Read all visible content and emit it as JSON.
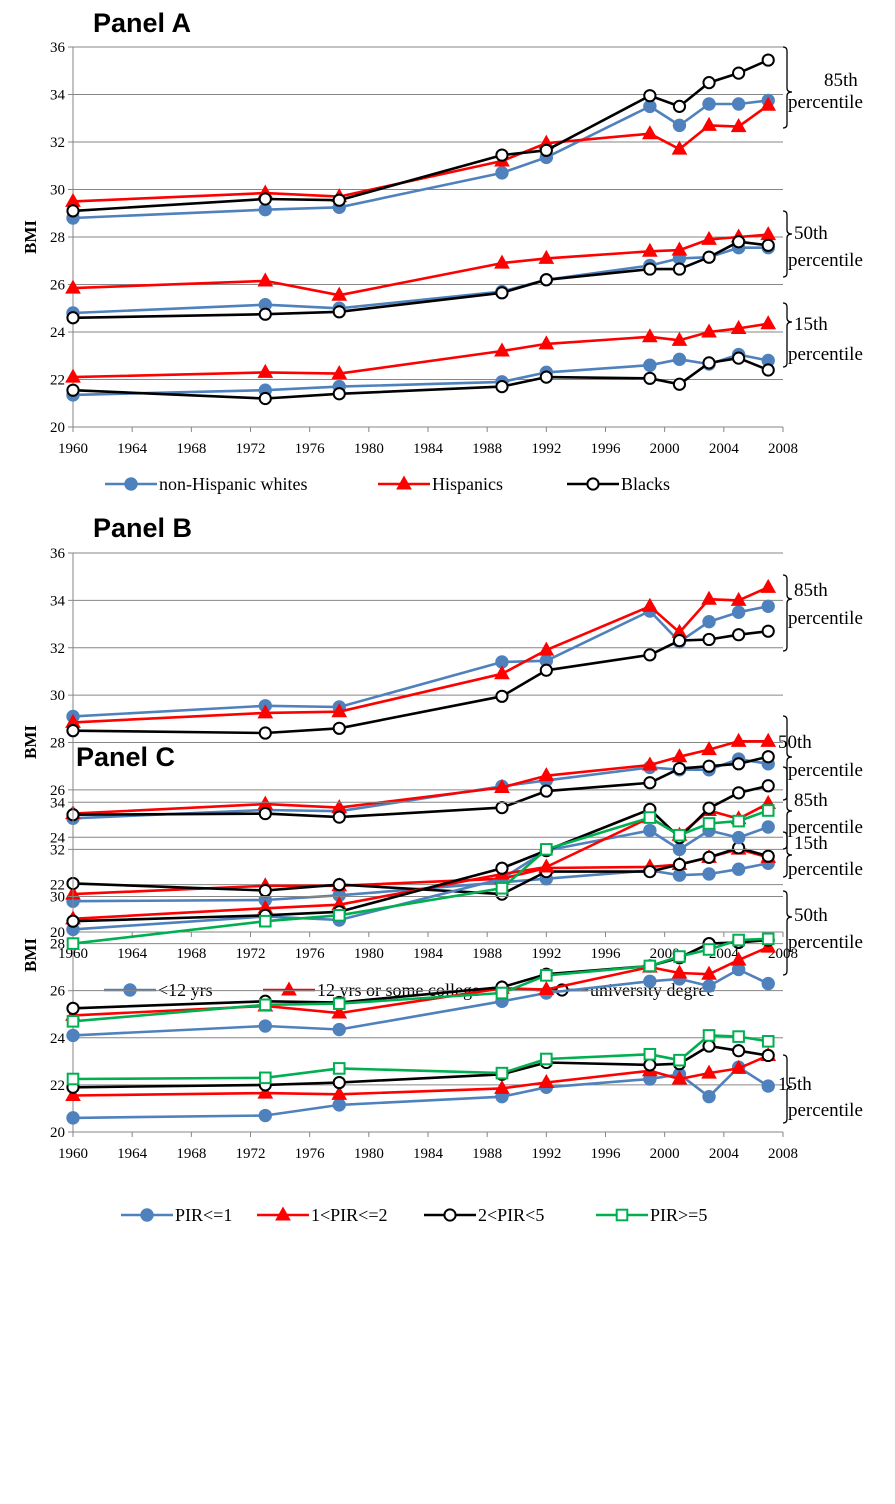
{
  "chart_data": [
    {
      "type": "line",
      "title": "Panel A",
      "ylabel": "BMI",
      "xlim": [
        1960,
        2008
      ],
      "ylim": [
        20,
        36
      ],
      "x_ticks": [
        "1960",
        "1964",
        "1968",
        "1972",
        "1976",
        "1980",
        "1984",
        "1988",
        "1992",
        "1996",
        "2000",
        "2004",
        "2008"
      ],
      "y_ticks": [
        "20",
        "22",
        "24",
        "26",
        "28",
        "30",
        "32",
        "34",
        "36"
      ],
      "grid": "horizontal",
      "legend": [
        {
          "label": "non-Hispanic whites",
          "color": "#4F81BD",
          "marker": "circle"
        },
        {
          "label": "Hispanics",
          "color": "#FF0000",
          "marker": "triangle"
        },
        {
          "label": "Blacks",
          "color": "#000000",
          "marker": "open-circle"
        }
      ],
      "percentile_labels": [
        {
          "line1": "85th",
          "line2": "percentile"
        },
        {
          "line1": "50th",
          "line2": "percentile"
        },
        {
          "line1": "15th",
          "line2": "percentile"
        }
      ],
      "x": [
        1960,
        1973,
        1978,
        1989,
        1992,
        1999,
        2001,
        2003,
        2005,
        2007
      ],
      "series": [
        {
          "legend": 0,
          "percentile": "85th",
          "values": [
            28.8,
            29.15,
            29.25,
            30.7,
            31.35,
            33.5,
            32.7,
            33.6,
            33.6,
            33.75
          ]
        },
        {
          "legend": 1,
          "percentile": "85th",
          "values": [
            29.5,
            29.85,
            29.7,
            31.2,
            31.95,
            32.35,
            31.7,
            32.7,
            32.65,
            33.55
          ]
        },
        {
          "legend": 2,
          "percentile": "85th",
          "values": [
            29.1,
            29.6,
            29.55,
            31.45,
            31.65,
            33.95,
            33.5,
            34.5,
            34.9,
            35.45
          ]
        },
        {
          "legend": 0,
          "percentile": "50th",
          "values": [
            24.8,
            25.15,
            25.0,
            25.7,
            26.2,
            26.8,
            27.1,
            27.15,
            27.55,
            27.55
          ]
        },
        {
          "legend": 1,
          "percentile": "50th",
          "values": [
            25.85,
            26.15,
            25.55,
            26.9,
            27.1,
            27.4,
            27.45,
            27.9,
            28.0,
            28.1
          ]
        },
        {
          "legend": 2,
          "percentile": "50th",
          "values": [
            24.6,
            24.75,
            24.85,
            25.65,
            26.2,
            26.65,
            26.65,
            27.15,
            27.8,
            27.65
          ]
        },
        {
          "legend": 0,
          "percentile": "15th",
          "values": [
            21.35,
            21.55,
            21.7,
            21.9,
            22.3,
            22.6,
            22.85,
            22.65,
            23.05,
            22.8
          ]
        },
        {
          "legend": 1,
          "percentile": "15th",
          "values": [
            22.1,
            22.3,
            22.25,
            23.2,
            23.5,
            23.8,
            23.65,
            24.0,
            24.15,
            24.35
          ]
        },
        {
          "legend": 2,
          "percentile": "15th",
          "values": [
            21.55,
            21.2,
            21.4,
            21.7,
            22.1,
            22.05,
            21.8,
            22.7,
            22.9,
            22.4
          ]
        }
      ]
    },
    {
      "type": "line",
      "title": "Panel B",
      "ylabel": "BMI",
      "xlim": [
        1960,
        2008
      ],
      "ylim": [
        20,
        36
      ],
      "x_ticks": [
        "1960",
        "1964",
        "1968",
        "1972",
        "1976",
        "1980",
        "1984",
        "1988",
        "1992",
        "1996",
        "2000",
        "2004",
        "2008"
      ],
      "y_ticks": [
        "20",
        "22",
        "24",
        "26",
        "28",
        "30",
        "32",
        "34",
        "36"
      ],
      "grid": "horizontal",
      "legend": [
        {
          "label": "<12 yrs",
          "color": "#4F81BD",
          "marker": "circle"
        },
        {
          "label": "12 yrs or some college",
          "color": "#FF0000",
          "marker": "triangle"
        },
        {
          "label": "university degree",
          "color": "#000000",
          "marker": "open-circle"
        }
      ],
      "percentile_labels": [
        {
          "line1": "85th",
          "line2": "percentile"
        },
        {
          "line1": "50th",
          "line2": "percentile"
        },
        {
          "line1": "15th",
          "line2": "percentile"
        }
      ],
      "x": [
        1960,
        1973,
        1978,
        1989,
        1992,
        1999,
        2001,
        2003,
        2005,
        2007
      ],
      "series": [
        {
          "legend": 0,
          "percentile": "85th",
          "values": [
            29.1,
            29.55,
            29.5,
            31.4,
            31.45,
            33.55,
            32.25,
            33.1,
            33.5,
            33.75
          ]
        },
        {
          "legend": 1,
          "percentile": "85th",
          "values": [
            28.85,
            29.25,
            29.3,
            30.9,
            31.9,
            33.75,
            32.65,
            34.05,
            34.0,
            34.55
          ]
        },
        {
          "legend": 2,
          "percentile": "85th",
          "values": [
            28.5,
            28.4,
            28.6,
            29.95,
            31.05,
            31.7,
            32.3,
            32.35,
            32.55,
            32.7
          ]
        },
        {
          "legend": 0,
          "percentile": "50th",
          "values": [
            24.8,
            25.15,
            25.1,
            26.15,
            26.4,
            26.95,
            26.85,
            26.85,
            27.3,
            27.1
          ]
        },
        {
          "legend": 1,
          "percentile": "50th",
          "values": [
            25.0,
            25.4,
            25.25,
            26.1,
            26.6,
            27.05,
            27.4,
            27.7,
            28.05,
            28.05
          ]
        },
        {
          "legend": 2,
          "percentile": "50th",
          "values": [
            24.95,
            25.0,
            24.85,
            25.25,
            25.95,
            26.3,
            26.9,
            27.0,
            27.1,
            27.4
          ]
        },
        {
          "legend": 0,
          "percentile": "15th",
          "values": [
            21.3,
            21.35,
            21.55,
            22.1,
            22.25,
            22.6,
            22.4,
            22.45,
            22.65,
            22.9
          ]
        },
        {
          "legend": 1,
          "percentile": "15th",
          "values": [
            21.6,
            21.95,
            21.95,
            22.25,
            22.7,
            22.75,
            22.85,
            23.15,
            23.5,
            23.15
          ]
        },
        {
          "legend": 2,
          "percentile": "15th",
          "values": [
            22.05,
            21.75,
            22.0,
            21.6,
            22.55,
            22.55,
            22.85,
            23.15,
            23.55,
            23.2
          ]
        }
      ]
    },
    {
      "type": "line",
      "title": "Panel C",
      "ylabel": "BMI",
      "xlim": [
        1960,
        2008
      ],
      "ylim": [
        20,
        35.2
      ],
      "x_ticks": [
        "1960",
        "1964",
        "1968",
        "1972",
        "1976",
        "1980",
        "1984",
        "1988",
        "1992",
        "1996",
        "2000",
        "2004",
        "2008"
      ],
      "y_ticks": [
        "20",
        "22",
        "24",
        "26",
        "28",
        "30",
        "32",
        "34"
      ],
      "grid": "horizontal",
      "legend": [
        {
          "label": "PIR<=1",
          "color": "#4F81BD",
          "marker": "circle"
        },
        {
          "label": "1<PIR<=2",
          "color": "#FF0000",
          "marker": "triangle"
        },
        {
          "label": "2<PIR<5",
          "color": "#000000",
          "marker": "open-circle"
        },
        {
          "label": "PIR>=5",
          "color": "#00B050",
          "marker": "open-square"
        }
      ],
      "percentile_labels": [
        {
          "line1": "85th",
          "line2": "percentile"
        },
        {
          "line1": "50th",
          "line2": "percentile"
        },
        {
          "line1": "15th",
          "line2": "percentile"
        }
      ],
      "x": [
        1960,
        1973,
        1978,
        1989,
        1992,
        1999,
        2001,
        2003,
        2005,
        2007
      ],
      "series": [
        {
          "legend": 0,
          "percentile": "85th",
          "values": [
            28.6,
            29.15,
            29.0,
            30.75,
            31.95,
            32.8,
            32.0,
            32.8,
            32.5,
            32.95
          ]
        },
        {
          "legend": 1,
          "percentile": "85th",
          "values": [
            29.05,
            29.5,
            29.65,
            30.95,
            31.25,
            33.35,
            32.6,
            33.65,
            33.3,
            33.95
          ]
        },
        {
          "legend": 2,
          "percentile": "85th",
          "values": [
            28.95,
            29.2,
            29.35,
            31.2,
            31.95,
            33.7,
            32.5,
            33.75,
            34.4,
            34.7
          ]
        },
        {
          "legend": 3,
          "percentile": "85th",
          "values": [
            28.0,
            28.95,
            29.2,
            30.35,
            32.0,
            33.35,
            32.6,
            33.1,
            33.2,
            33.65
          ]
        },
        {
          "legend": 0,
          "percentile": "50th",
          "values": [
            24.1,
            24.5,
            24.35,
            25.55,
            25.9,
            26.4,
            26.5,
            26.2,
            26.9,
            26.3
          ]
        },
        {
          "legend": 1,
          "percentile": "50th",
          "values": [
            24.95,
            25.35,
            25.05,
            26.1,
            26.05,
            27.0,
            26.75,
            26.7,
            27.3,
            27.85
          ]
        },
        {
          "legend": 2,
          "percentile": "50th",
          "values": [
            25.25,
            25.55,
            25.5,
            26.15,
            26.7,
            27.05,
            27.4,
            28.0,
            28.05,
            28.15
          ]
        },
        {
          "legend": 3,
          "percentile": "50th",
          "values": [
            24.7,
            25.4,
            25.45,
            25.9,
            26.65,
            27.05,
            27.45,
            27.75,
            28.15,
            28.2
          ]
        },
        {
          "legend": 0,
          "percentile": "15th",
          "values": [
            20.6,
            20.7,
            21.15,
            21.5,
            21.9,
            22.25,
            22.45,
            21.5,
            22.75,
            21.95
          ]
        },
        {
          "legend": 1,
          "percentile": "15th",
          "values": [
            21.55,
            21.65,
            21.6,
            21.85,
            22.1,
            22.6,
            22.25,
            22.5,
            22.7,
            23.25
          ]
        },
        {
          "legend": 2,
          "percentile": "15th",
          "values": [
            21.9,
            22.0,
            22.1,
            22.45,
            22.95,
            22.85,
            22.9,
            23.65,
            23.45,
            23.25
          ]
        },
        {
          "legend": 3,
          "percentile": "15th",
          "values": [
            22.25,
            22.3,
            22.7,
            22.5,
            23.1,
            23.3,
            23.05,
            24.1,
            24.05,
            23.85
          ]
        }
      ]
    }
  ]
}
